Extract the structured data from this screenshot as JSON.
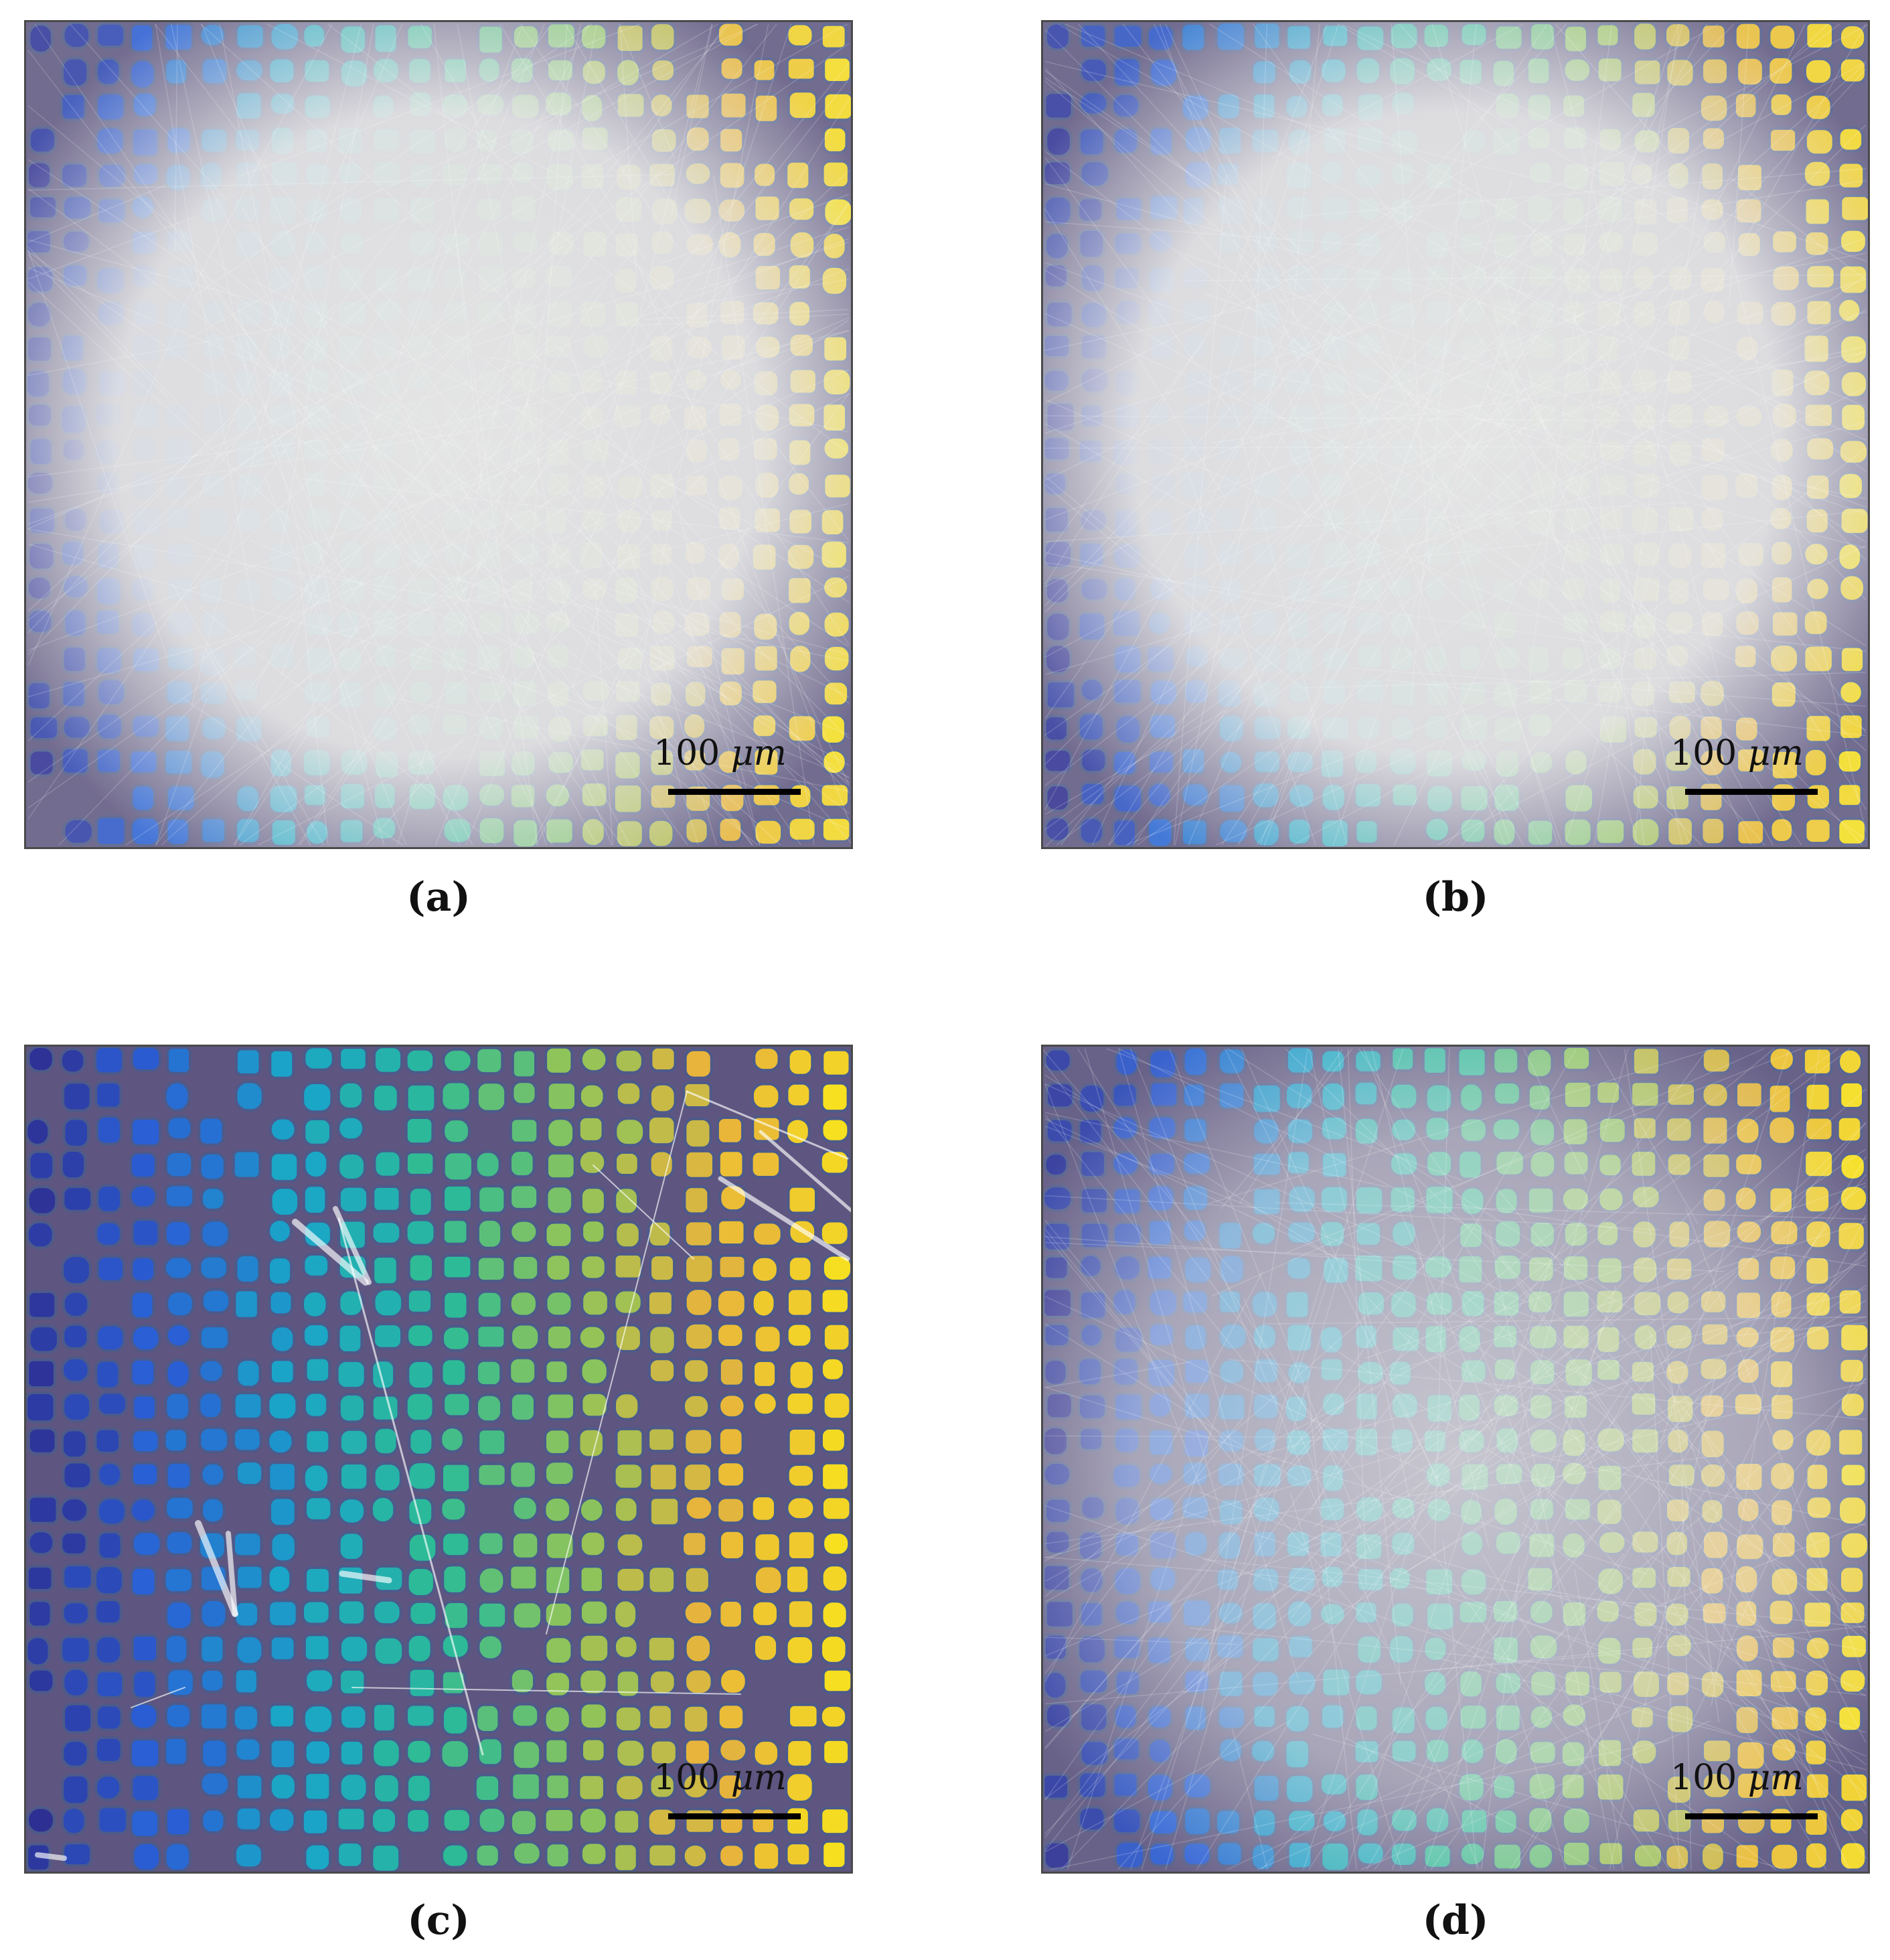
{
  "panels": [
    {
      "id": "a",
      "caption": "(a)",
      "scale_bar": {
        "value": "100",
        "unit": "μm"
      },
      "overlay": "dense"
    },
    {
      "id": "b",
      "caption": "(b)",
      "scale_bar": {
        "value": "100",
        "unit": "μm"
      },
      "overlay": "dense"
    },
    {
      "id": "c",
      "caption": "(c)",
      "scale_bar": {
        "value": "100",
        "unit": "μm"
      },
      "overlay": "sparse"
    },
    {
      "id": "d",
      "caption": "(d)",
      "scale_bar": {
        "value": "100",
        "unit": "μm"
      },
      "overlay": "medium"
    }
  ],
  "colors": {
    "background": "#5e5680",
    "colormap": [
      "#2e2d8f",
      "#2a5fd6",
      "#1aa6c8",
      "#2dbb96",
      "#8fc45a",
      "#e8b43c",
      "#f7e11e"
    ],
    "overlay": "#e6e6e6",
    "scale_bar": "#000000",
    "frame": "#4a4a4a"
  }
}
